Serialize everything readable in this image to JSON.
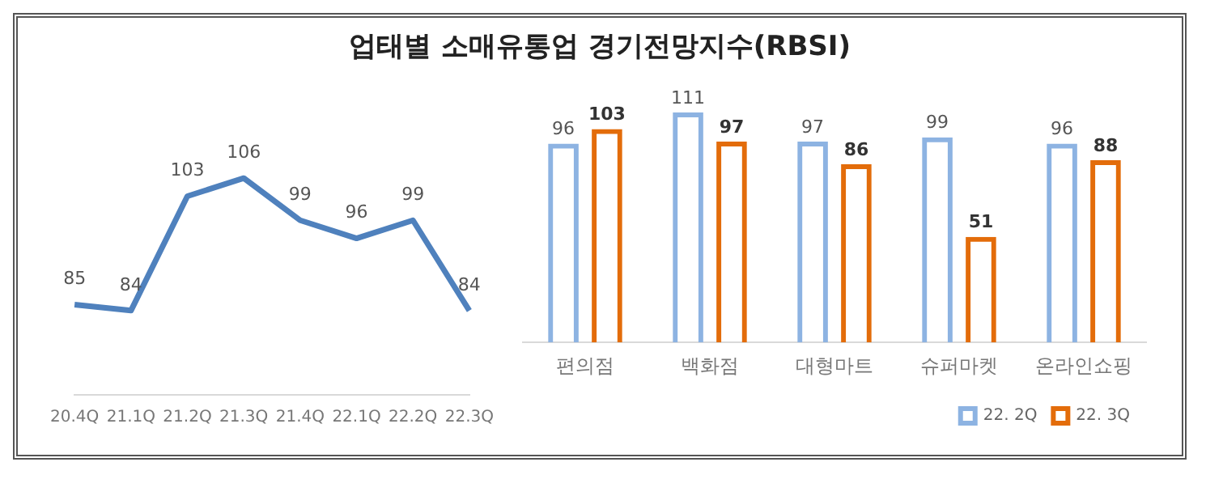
{
  "chart_data": [
    {
      "type": "line",
      "title": "업태별 소매유통업 경기전망지수(RBSI)",
      "categories": [
        "20.4Q",
        "21.1Q",
        "21.2Q",
        "21.3Q",
        "21.4Q",
        "22.1Q",
        "22.2Q",
        "22.3Q"
      ],
      "series": [
        {
          "color": "#4f81bd",
          "values": [
            85,
            84,
            103,
            106,
            99,
            96,
            99,
            84
          ]
        }
      ],
      "data_labels": true,
      "grid": false,
      "legend": false,
      "marker": "none"
    },
    {
      "type": "bar",
      "categories": [
        "편의점",
        "백화점",
        "대형마트",
        "슈퍼마켓",
        "온라인쇼핑"
      ],
      "series": [
        {
          "name": "22. 2Q",
          "color": "#8db3e2",
          "values": [
            96,
            111,
            97,
            99,
            96
          ]
        },
        {
          "name": "22. 3Q",
          "color": "#e36c0a",
          "values": [
            103,
            97,
            86,
            51,
            88
          ]
        }
      ],
      "data_labels": true,
      "grid": false,
      "legend": "bottom right"
    }
  ]
}
